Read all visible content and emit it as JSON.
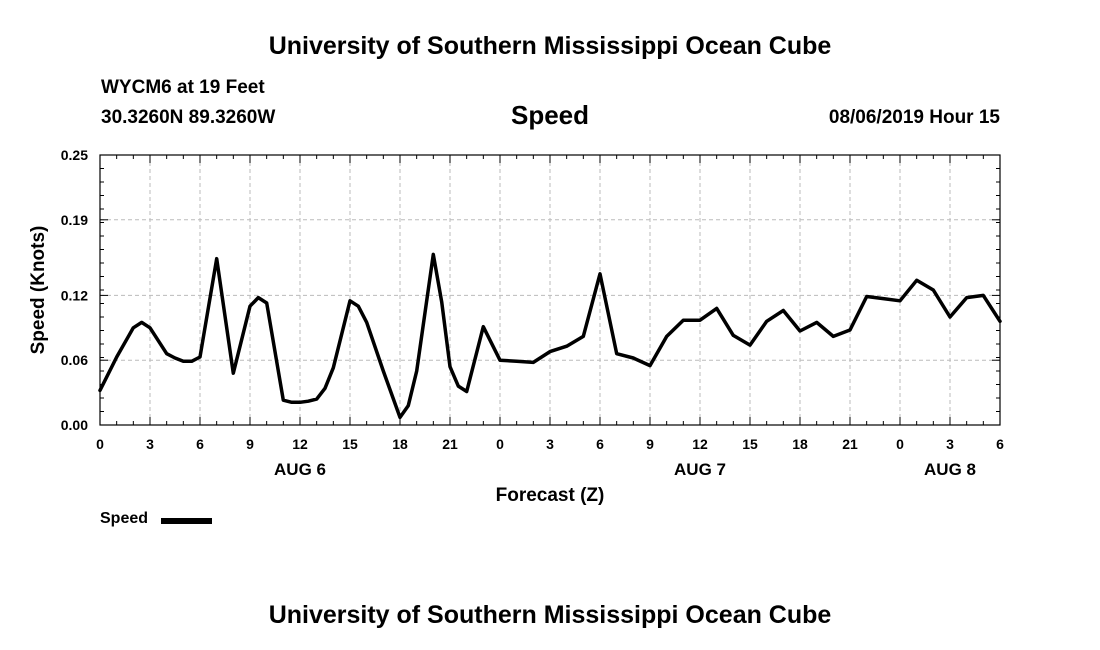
{
  "header": {
    "title": "University of Southern Mississippi Ocean Cube",
    "station": "WYCM6 at 19 Feet",
    "coords": "30.3260N 89.3260W",
    "variable": "Speed",
    "date": "08/06/2019 Hour 15"
  },
  "footer": {
    "title": "University of Southern Mississippi Ocean Cube"
  },
  "legend": {
    "label": "Speed"
  },
  "chart_data": {
    "type": "line",
    "title": "Speed",
    "xlabel": "Forecast (Z)",
    "ylabel": "Speed (Knots)",
    "xlim": [
      0,
      54
    ],
    "ylim": [
      0,
      0.25
    ],
    "yticks": [
      0.0,
      0.06,
      0.12,
      0.19,
      0.25
    ],
    "ytick_labels": [
      "0.00",
      "0.06",
      "0.12",
      "0.19",
      "0.25"
    ],
    "xticks": [
      0,
      3,
      6,
      9,
      12,
      15,
      18,
      21,
      24,
      27,
      30,
      33,
      36,
      39,
      42,
      45,
      48,
      51,
      54
    ],
    "xtick_labels": [
      "0",
      "3",
      "6",
      "9",
      "12",
      "15",
      "18",
      "21",
      "0",
      "3",
      "6",
      "9",
      "12",
      "15",
      "18",
      "21",
      "0",
      "3",
      "6"
    ],
    "day_labels": [
      {
        "x": 12,
        "label": "AUG 6"
      },
      {
        "x": 36,
        "label": "AUG 7"
      },
      {
        "x": 51,
        "label": "AUG 8"
      }
    ],
    "grid": true,
    "legend_position": "bottom-left",
    "series": [
      {
        "name": "Speed",
        "color": "#000000",
        "x": [
          0,
          1,
          2,
          2.5,
          3,
          4,
          4.5,
          5,
          5.5,
          6,
          7,
          8,
          9,
          9.5,
          10,
          11,
          11.5,
          12,
          12.5,
          13,
          13.5,
          14,
          15,
          15.5,
          16,
          17,
          18,
          18.5,
          19,
          20,
          20.5,
          21,
          21.5,
          22,
          23,
          24,
          25,
          26,
          27,
          28,
          29,
          30,
          31,
          32,
          33,
          34,
          35,
          36,
          37,
          38,
          39,
          40,
          41,
          42,
          43,
          44,
          45,
          46,
          47,
          48,
          49,
          50,
          51,
          52,
          53,
          54
        ],
        "y": [
          0.032,
          0.063,
          0.09,
          0.095,
          0.09,
          0.066,
          0.062,
          0.059,
          0.059,
          0.063,
          0.154,
          0.048,
          0.11,
          0.118,
          0.113,
          0.023,
          0.021,
          0.021,
          0.022,
          0.024,
          0.034,
          0.053,
          0.115,
          0.11,
          0.095,
          0.05,
          0.007,
          0.018,
          0.05,
          0.158,
          0.114,
          0.054,
          0.036,
          0.031,
          0.091,
          0.06,
          0.059,
          0.058,
          0.068,
          0.073,
          0.082,
          0.14,
          0.066,
          0.062,
          0.055,
          0.082,
          0.097,
          0.097,
          0.108,
          0.083,
          0.074,
          0.096,
          0.106,
          0.087,
          0.095,
          0.082,
          0.088,
          0.119,
          0.117,
          0.115,
          0.134,
          0.125,
          0.1,
          0.118,
          0.12,
          0.096
        ]
      }
    ]
  }
}
